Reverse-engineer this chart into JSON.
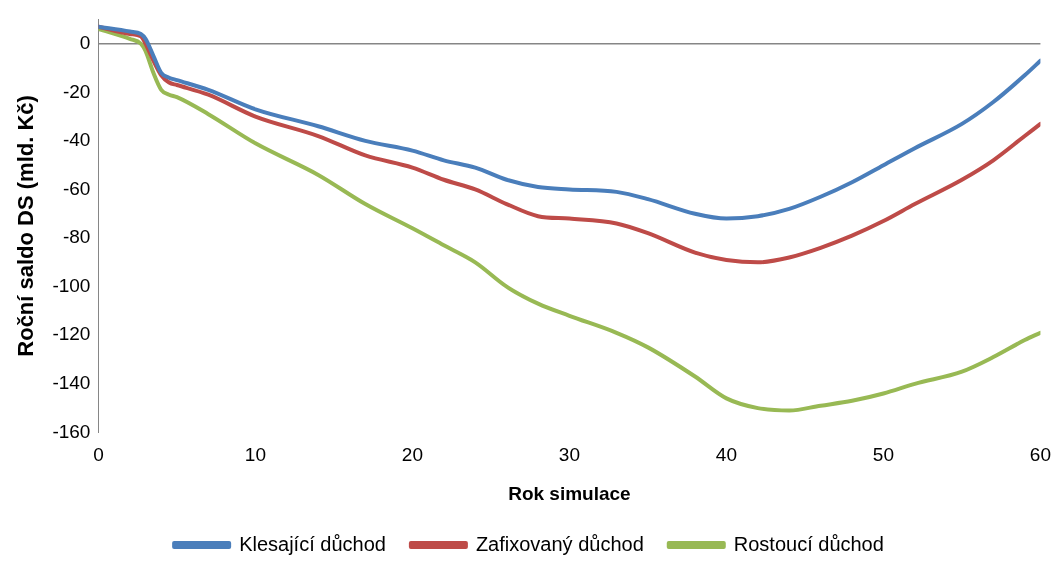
{
  "chart_data": {
    "type": "line",
    "xlabel": "Rok simulace",
    "ylabel": "Roční saldo DS (mld. Kč)",
    "xlim": [
      0,
      60
    ],
    "xticks": [
      0,
      10,
      20,
      30,
      40,
      50,
      60
    ],
    "ylim": [
      -160,
      10
    ],
    "yticks": [
      -160,
      -140,
      -120,
      -100,
      -80,
      -60,
      -40,
      -20,
      0
    ],
    "grid": false,
    "ref_lines": [
      {
        "axis": "y",
        "value": 0,
        "color": "#868686"
      }
    ],
    "legend": "bottom",
    "marker": "none",
    "line_style": "solid",
    "x": [
      0,
      2,
      2.7,
      3,
      3.5,
      4,
      4.5,
      5,
      7,
      10,
      14,
      17,
      20,
      22,
      24,
      26,
      28,
      30,
      33,
      35,
      38,
      40,
      42,
      44,
      46,
      48,
      50,
      52,
      55,
      57,
      59,
      60
    ],
    "series": [
      {
        "name": "Klesající důchod",
        "color": "#4a7ebb",
        "values": [
          7,
          5,
          4,
          2,
          -5,
          -12,
          -14,
          -15,
          -19,
          -27,
          -34,
          -40,
          -44,
          -48,
          -51,
          -56,
          -59,
          -60,
          -61,
          -64,
          -70,
          -72,
          -71,
          -68,
          -63,
          -57,
          -50,
          -43,
          -33,
          -24,
          -13,
          -7
        ]
      },
      {
        "name": "Zafixovaný důchod",
        "color": "#be4b48",
        "values": [
          7,
          4,
          3,
          0,
          -7,
          -13,
          -16,
          -17,
          -21,
          -30,
          -38,
          -46,
          -51,
          -56,
          -60,
          -66,
          -71,
          -72,
          -74,
          -78,
          -86,
          -89,
          -90,
          -88,
          -84,
          -79,
          -73,
          -66,
          -56,
          -48,
          -38,
          -33
        ]
      },
      {
        "name": "Rostoucí důchod",
        "color": "#98b954",
        "values": [
          6,
          2,
          0,
          -3,
          -12,
          -19,
          -21,
          -22,
          -29,
          -41,
          -54,
          -66,
          -76,
          -83,
          -90,
          -100,
          -107,
          -112,
          -119,
          -125,
          -137,
          -146,
          -150,
          -151,
          -149,
          -147,
          -144,
          -140,
          -135,
          -129,
          -122,
          -119
        ]
      }
    ]
  }
}
